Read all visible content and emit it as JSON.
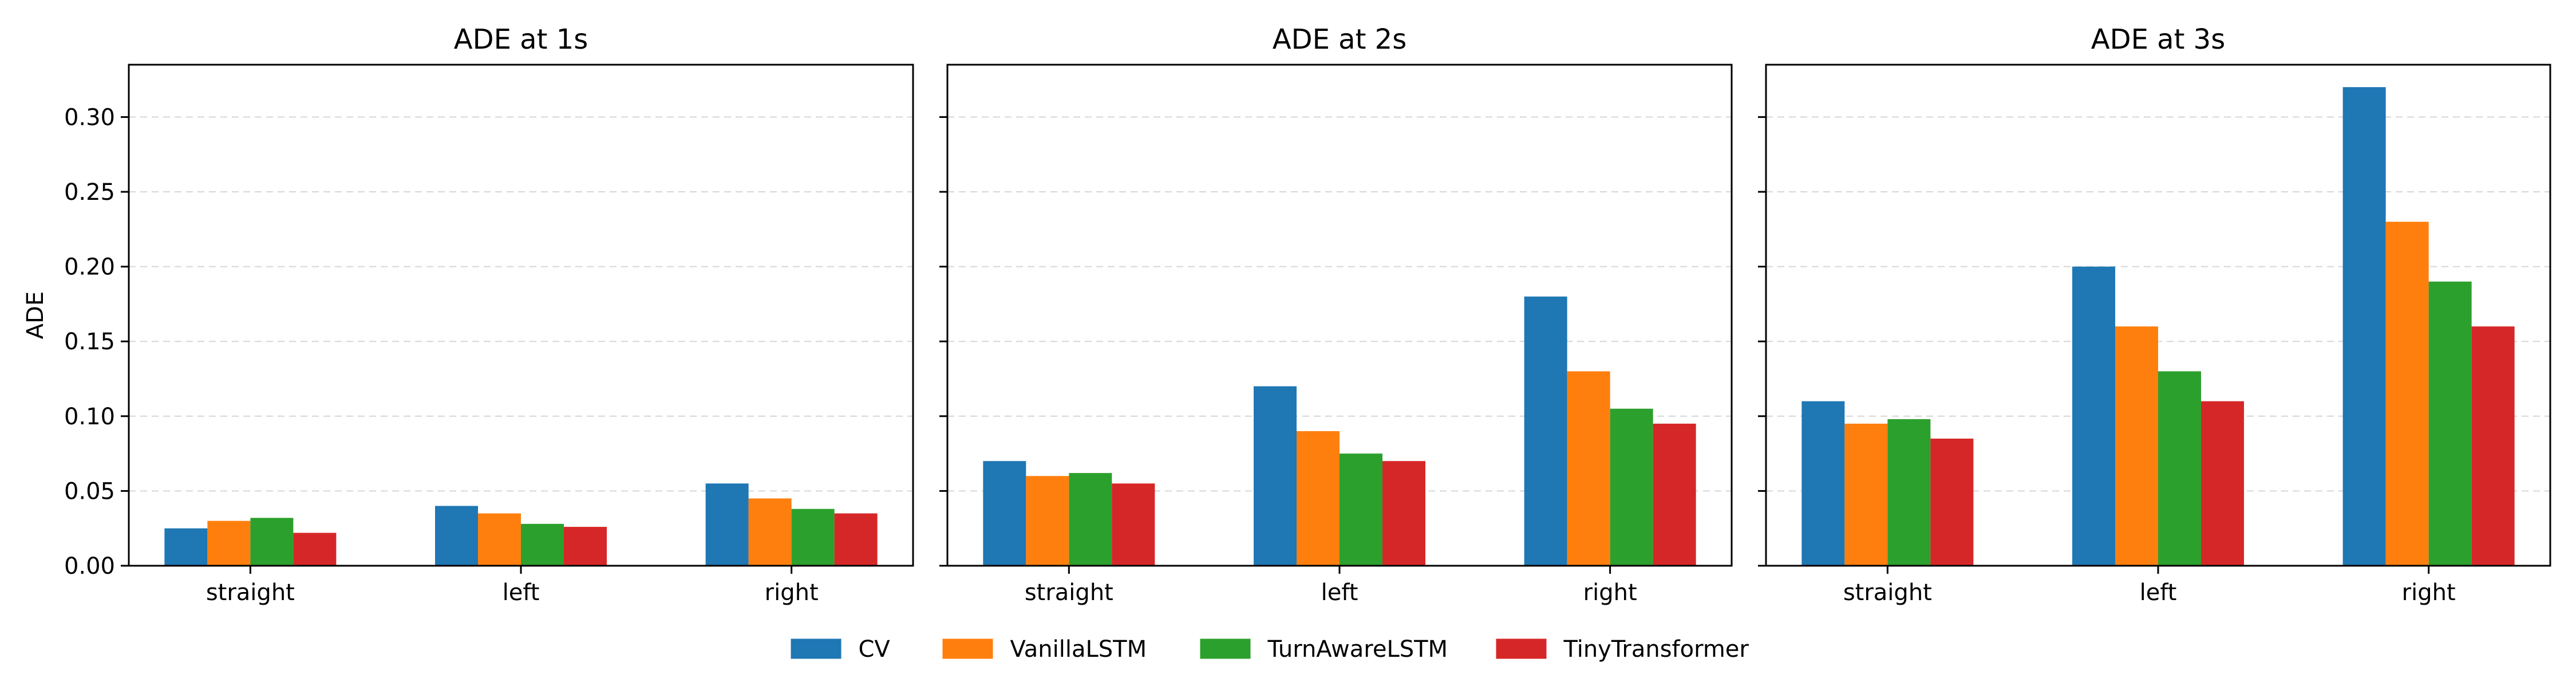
{
  "chart_data": {
    "type": "bar",
    "categories": [
      "straight",
      "left",
      "right"
    ],
    "series_meta": [
      {
        "name": "CV",
        "color": "#1f77b4"
      },
      {
        "name": "VanillaLSTM",
        "color": "#ff7f0e"
      },
      {
        "name": "TurnAwareLSTM",
        "color": "#2ca02c"
      },
      {
        "name": "TinyTransformer",
        "color": "#d62728"
      }
    ],
    "ylabel": "ADE",
    "ylim": [
      0,
      0.335
    ],
    "yticks": [
      "0.00",
      "0.05",
      "0.10",
      "0.15",
      "0.20",
      "0.25",
      "0.30"
    ],
    "grid": "y-dashed",
    "legend_position": "bottom-center",
    "panels": [
      {
        "title": "ADE at 1s",
        "series": [
          {
            "name": "CV",
            "values": [
              0.025,
              0.04,
              0.055
            ]
          },
          {
            "name": "VanillaLSTM",
            "values": [
              0.03,
              0.035,
              0.045
            ]
          },
          {
            "name": "TurnAwareLSTM",
            "values": [
              0.032,
              0.028,
              0.038
            ]
          },
          {
            "name": "TinyTransformer",
            "values": [
              0.022,
              0.026,
              0.035
            ]
          }
        ]
      },
      {
        "title": "ADE at 2s",
        "series": [
          {
            "name": "CV",
            "values": [
              0.07,
              0.12,
              0.18
            ]
          },
          {
            "name": "VanillaLSTM",
            "values": [
              0.06,
              0.09,
              0.13
            ]
          },
          {
            "name": "TurnAwareLSTM",
            "values": [
              0.062,
              0.075,
              0.105
            ]
          },
          {
            "name": "TinyTransformer",
            "values": [
              0.055,
              0.07,
              0.095
            ]
          }
        ]
      },
      {
        "title": "ADE at 3s",
        "series": [
          {
            "name": "CV",
            "values": [
              0.11,
              0.2,
              0.32
            ]
          },
          {
            "name": "VanillaLSTM",
            "values": [
              0.095,
              0.16,
              0.23
            ]
          },
          {
            "name": "TurnAwareLSTM",
            "values": [
              0.098,
              0.13,
              0.19
            ]
          },
          {
            "name": "TinyTransformer",
            "values": [
              0.085,
              0.11,
              0.16
            ]
          }
        ]
      }
    ]
  }
}
